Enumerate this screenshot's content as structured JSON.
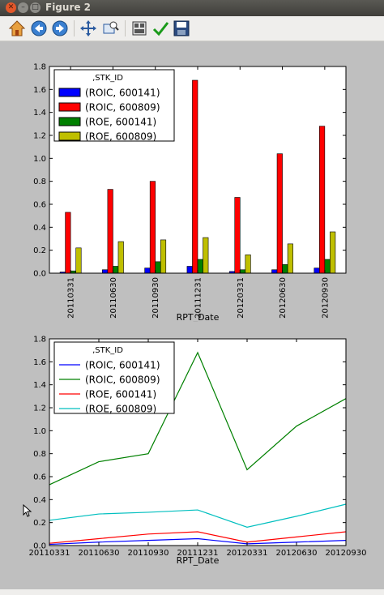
{
  "window": {
    "title": "Figure 2"
  },
  "toolbar": {
    "buttons": [
      {
        "name": "home-button",
        "icon": "home-icon"
      },
      {
        "name": "back-button",
        "icon": "arrow-left-icon"
      },
      {
        "name": "forward-button",
        "icon": "arrow-right-icon"
      },
      {
        "name": "pan-button",
        "icon": "move-icon"
      },
      {
        "name": "zoom-button",
        "icon": "zoom-rect-icon"
      },
      {
        "name": "subplots-button",
        "icon": "subplots-icon"
      },
      {
        "name": "edit-axis-button",
        "icon": "checkmark-icon"
      },
      {
        "name": "save-button",
        "icon": "floppy-disk-icon"
      }
    ]
  },
  "chart_data": [
    {
      "type": "bar",
      "xlabel": "RPT_Date",
      "ylabel": "",
      "ylim": [
        0,
        1.8
      ],
      "yticks": [
        "0.0",
        "0.2",
        "0.4",
        "0.6",
        "0.8",
        "1.0",
        "1.2",
        "1.4",
        "1.6",
        "1.8"
      ],
      "categories": [
        "20110331",
        "20110630",
        "20110930",
        "20111231",
        "20120331",
        "20120630",
        "20120930"
      ],
      "legend": {
        "title": ",STK_ID",
        "placement": "upper-left"
      },
      "series": [
        {
          "name": "(ROIC, 600141)",
          "color": "#0000ff",
          "values": [
            0.01,
            0.03,
            0.045,
            0.06,
            0.015,
            0.03,
            0.045
          ]
        },
        {
          "name": "(ROIC, 600809)",
          "color": "#ff0000",
          "values": [
            0.53,
            0.73,
            0.8,
            1.68,
            0.66,
            1.04,
            1.28
          ]
        },
        {
          "name": "(ROE, 600141)",
          "color": "#008000",
          "values": [
            0.02,
            0.06,
            0.1,
            0.12,
            0.03,
            0.075,
            0.12
          ]
        },
        {
          "name": "(ROE, 600809)",
          "color": "#bfbf00",
          "values": [
            0.22,
            0.275,
            0.29,
            0.31,
            0.16,
            0.255,
            0.36
          ]
        }
      ]
    },
    {
      "type": "line",
      "xlabel": "RPT_Date",
      "ylabel": "",
      "ylim": [
        0,
        1.8
      ],
      "yticks": [
        "0.0",
        "0.2",
        "0.4",
        "0.6",
        "0.8",
        "1.0",
        "1.2",
        "1.4",
        "1.6",
        "1.8"
      ],
      "x": [
        "20110331",
        "20110630",
        "20110930",
        "20111231",
        "20120331",
        "20120630",
        "20120930"
      ],
      "legend": {
        "title": ",STK_ID",
        "placement": "upper-left"
      },
      "series": [
        {
          "name": "(ROIC, 600141)",
          "color": "#0000ff",
          "values": [
            0.01,
            0.03,
            0.045,
            0.06,
            0.015,
            0.03,
            0.045
          ]
        },
        {
          "name": "(ROIC, 600809)",
          "color": "#008000",
          "values": [
            0.53,
            0.73,
            0.8,
            1.68,
            0.66,
            1.04,
            1.28
          ]
        },
        {
          "name": "(ROE, 600141)",
          "color": "#ff0000",
          "values": [
            0.02,
            0.06,
            0.1,
            0.12,
            0.03,
            0.075,
            0.12
          ]
        },
        {
          "name": "(ROE, 600809)",
          "color": "#00bfbf",
          "values": [
            0.22,
            0.275,
            0.29,
            0.31,
            0.16,
            0.255,
            0.36
          ]
        }
      ]
    }
  ]
}
